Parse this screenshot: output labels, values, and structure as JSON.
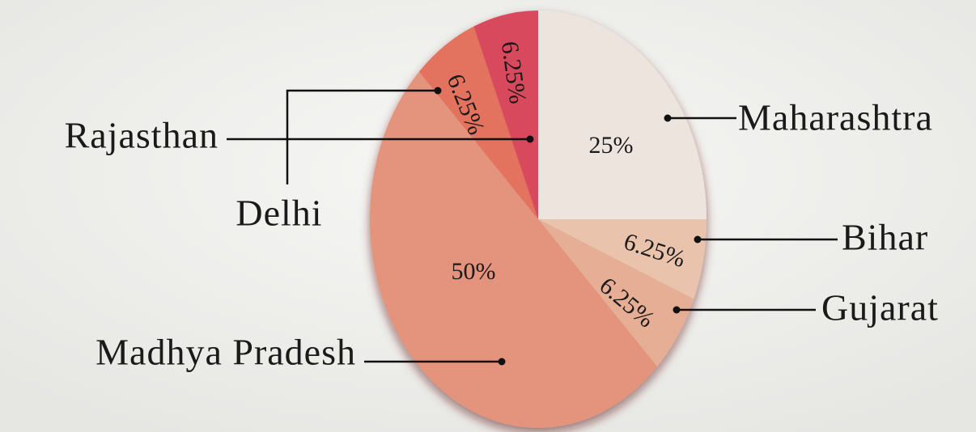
{
  "chart_data": {
    "type": "pie",
    "categories": [
      "Maharashtra",
      "Bihar",
      "Gujarat",
      "Madhya Pradesh",
      "Delhi",
      "Rajasthan"
    ],
    "values": [
      25,
      6.25,
      6.25,
      50,
      6.25,
      6.25
    ],
    "value_labels": [
      "25%",
      "6.25%",
      "6.25%",
      "50%",
      "6.25%",
      "6.25%"
    ],
    "colors": [
      "#ede4dd",
      "#e9c3ac",
      "#e5ae95",
      "#e4937b",
      "#e3725f",
      "#d94a5d"
    ]
  }
}
